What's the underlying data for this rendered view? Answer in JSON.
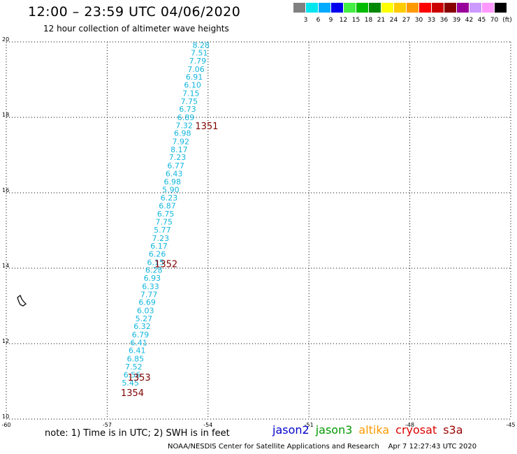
{
  "header": {
    "title": "12:00 – 23:59 UTC 04/06/2020",
    "subtitle": "12 hour collection of altimeter wave heights"
  },
  "color_scale": {
    "unit": "(ft)",
    "bins": [
      {
        "label": "3",
        "color": "#808080"
      },
      {
        "label": "6",
        "color": "#00e5ee"
      },
      {
        "label": "9",
        "color": "#00aaff"
      },
      {
        "label": "12",
        "color": "#0000ee"
      },
      {
        "label": "15",
        "color": "#44ee44"
      },
      {
        "label": "18",
        "color": "#00bb00"
      },
      {
        "label": "21",
        "color": "#008800"
      },
      {
        "label": "24",
        "color": "#ffff00"
      },
      {
        "label": "27",
        "color": "#ffcc00"
      },
      {
        "label": "30",
        "color": "#ff9900"
      },
      {
        "label": "33",
        "color": "#ff0000"
      },
      {
        "label": "36",
        "color": "#cc0000"
      },
      {
        "label": "39",
        "color": "#880000"
      },
      {
        "label": "42",
        "color": "#990099"
      },
      {
        "label": "45",
        "color": "#cc99ff"
      },
      {
        "label": "70",
        "color": "#ff99ff"
      },
      {
        "label": "",
        "color": "#000000"
      }
    ]
  },
  "map": {
    "lon_range": [
      -60,
      -45
    ],
    "lat_range": [
      10,
      20
    ],
    "lon_ticks": [
      "-60",
      "-57",
      "-54",
      "-51",
      "-48",
      "-45"
    ],
    "lat_ticks": [
      "10",
      "12",
      "14",
      "16",
      "18",
      "20"
    ],
    "value_color": "#12b6de",
    "pass_color": "#800000",
    "track_points": [
      {
        "lon": -54.21,
        "lat": 19.92,
        "value": "8.28"
      },
      {
        "lon": -54.26,
        "lat": 19.71,
        "value": "7.51"
      },
      {
        "lon": -54.31,
        "lat": 19.5,
        "value": "7.79"
      },
      {
        "lon": -54.36,
        "lat": 19.28,
        "value": "7.06"
      },
      {
        "lon": -54.41,
        "lat": 19.07,
        "value": "6.91"
      },
      {
        "lon": -54.46,
        "lat": 18.86,
        "value": "6.10"
      },
      {
        "lon": -54.51,
        "lat": 18.64,
        "value": "7.15"
      },
      {
        "lon": -54.56,
        "lat": 18.43,
        "value": "7.75"
      },
      {
        "lon": -54.61,
        "lat": 18.22,
        "value": "6.73"
      },
      {
        "lon": -54.66,
        "lat": 18.0,
        "value": "6.89"
      },
      {
        "lon": -54.71,
        "lat": 17.79,
        "value": "7.32"
      },
      {
        "lon": -54.76,
        "lat": 17.58,
        "value": "6.98"
      },
      {
        "lon": -54.81,
        "lat": 17.36,
        "value": "7.92"
      },
      {
        "lon": -54.86,
        "lat": 17.15,
        "value": "8.17"
      },
      {
        "lon": -54.91,
        "lat": 16.94,
        "value": "7.23"
      },
      {
        "lon": -54.96,
        "lat": 16.72,
        "value": "6.77"
      },
      {
        "lon": -55.01,
        "lat": 16.51,
        "value": "6.43"
      },
      {
        "lon": -55.06,
        "lat": 16.3,
        "value": "6.98"
      },
      {
        "lon": -55.11,
        "lat": 16.08,
        "value": "5.90"
      },
      {
        "lon": -55.16,
        "lat": 15.87,
        "value": "6.23"
      },
      {
        "lon": -55.21,
        "lat": 15.66,
        "value": "6.87"
      },
      {
        "lon": -55.26,
        "lat": 15.44,
        "value": "6.75"
      },
      {
        "lon": -55.31,
        "lat": 15.23,
        "value": "7.75"
      },
      {
        "lon": -55.36,
        "lat": 15.02,
        "value": "5.77"
      },
      {
        "lon": -55.41,
        "lat": 14.8,
        "value": "7.23"
      },
      {
        "lon": -55.46,
        "lat": 14.59,
        "value": "6.17"
      },
      {
        "lon": -55.51,
        "lat": 14.38,
        "value": "6.26"
      },
      {
        "lon": -55.56,
        "lat": 14.16,
        "value": "6.15"
      },
      {
        "lon": -55.61,
        "lat": 13.95,
        "value": "6.28"
      },
      {
        "lon": -55.66,
        "lat": 13.74,
        "value": "6.93"
      },
      {
        "lon": -55.71,
        "lat": 13.52,
        "value": "6.33"
      },
      {
        "lon": -55.76,
        "lat": 13.31,
        "value": "7.77"
      },
      {
        "lon": -55.81,
        "lat": 13.1,
        "value": "6.69"
      },
      {
        "lon": -55.86,
        "lat": 12.88,
        "value": "6.03"
      },
      {
        "lon": -55.91,
        "lat": 12.67,
        "value": "5.27"
      },
      {
        "lon": -55.96,
        "lat": 12.46,
        "value": "6.32"
      },
      {
        "lon": -56.01,
        "lat": 12.24,
        "value": "6.79"
      },
      {
        "lon": -56.06,
        "lat": 12.03,
        "value": "6.41"
      },
      {
        "lon": -56.11,
        "lat": 11.82,
        "value": "6.41"
      },
      {
        "lon": -56.16,
        "lat": 11.6,
        "value": "6.85"
      },
      {
        "lon": -56.21,
        "lat": 11.39,
        "value": "7.52"
      },
      {
        "lon": -56.26,
        "lat": 11.18,
        "value": "6.56"
      },
      {
        "lon": -56.31,
        "lat": 10.96,
        "value": "5.45"
      }
    ],
    "pass_labels": [
      {
        "lon": -54.04,
        "lat": 17.78,
        "text": "1351"
      },
      {
        "lon": -55.25,
        "lat": 14.12,
        "text": "1352"
      },
      {
        "lon": -56.05,
        "lat": 11.11,
        "text": "1353"
      },
      {
        "lon": -56.25,
        "lat": 10.7,
        "text": "1354"
      }
    ]
  },
  "footer": {
    "note": "note: 1) Time is in UTC; 2) SWH is in feet",
    "satellites": [
      {
        "name": "jason2",
        "color": "#0000cc"
      },
      {
        "name": "jason3",
        "color": "#009900"
      },
      {
        "name": "altika",
        "color": "#ff9900"
      },
      {
        "name": "cryosat",
        "color": "#dd0000"
      },
      {
        "name": "s3a",
        "color": "#990000"
      }
    ],
    "credit": "NOAA/NESDIS Center for Satellite Applications and Research",
    "timestamp": "Apr  7 12:27:43 UTC 2020"
  }
}
